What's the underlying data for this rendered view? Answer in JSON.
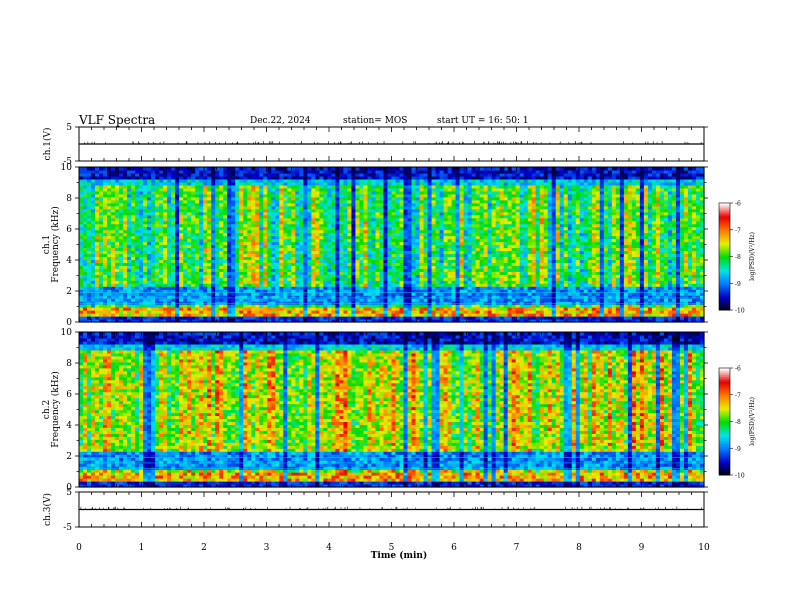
{
  "header": {
    "title": "VLF Spectra",
    "date": "Dec.22, 2024",
    "station": "station= MOS",
    "start": "start  UT =   16: 50: 1"
  },
  "chart_data": [
    {
      "type": "line",
      "ylabel": "ch.1(V)",
      "ylim": [
        -5,
        5
      ],
      "yticks": [
        "5",
        "-5"
      ],
      "x": [
        0,
        10
      ],
      "values": [
        0,
        0
      ]
    },
    {
      "type": "heatmap",
      "ylabel_top": "ch.1",
      "ylabel": "Frequency (kHz)",
      "ylim": [
        0,
        10
      ],
      "yticks": [
        "0",
        "2",
        "4",
        "6",
        "8",
        "10"
      ],
      "colorbar": {
        "label": "log(PSD)(V²/Hz)",
        "range": [
          -10,
          -6
        ],
        "ticks": [
          "-6",
          "-7",
          "-8",
          "-9",
          "-10"
        ]
      }
    },
    {
      "type": "heatmap",
      "ylabel_top": "ch.2",
      "ylabel": "Frequency (kHz)",
      "ylim": [
        0,
        10
      ],
      "yticks": [
        "0",
        "2",
        "4",
        "6",
        "8",
        "10"
      ],
      "colorbar": {
        "label": "log(PSD)(V²/Hz)",
        "range": [
          -10,
          -6
        ],
        "ticks": [
          "-6",
          "-7",
          "-8",
          "-9",
          "-10"
        ]
      }
    },
    {
      "type": "line",
      "ylabel": "ch.3(V)",
      "ylim": [
        -5,
        5
      ],
      "yticks": [
        "5",
        "-5"
      ],
      "x": [
        0,
        10
      ],
      "values": [
        0,
        0
      ]
    }
  ],
  "xaxis": {
    "label": "Time (min)",
    "range": [
      0,
      10
    ],
    "ticks": [
      "0",
      "1",
      "2",
      "3",
      "4",
      "5",
      "6",
      "7",
      "8",
      "9",
      "10"
    ]
  }
}
